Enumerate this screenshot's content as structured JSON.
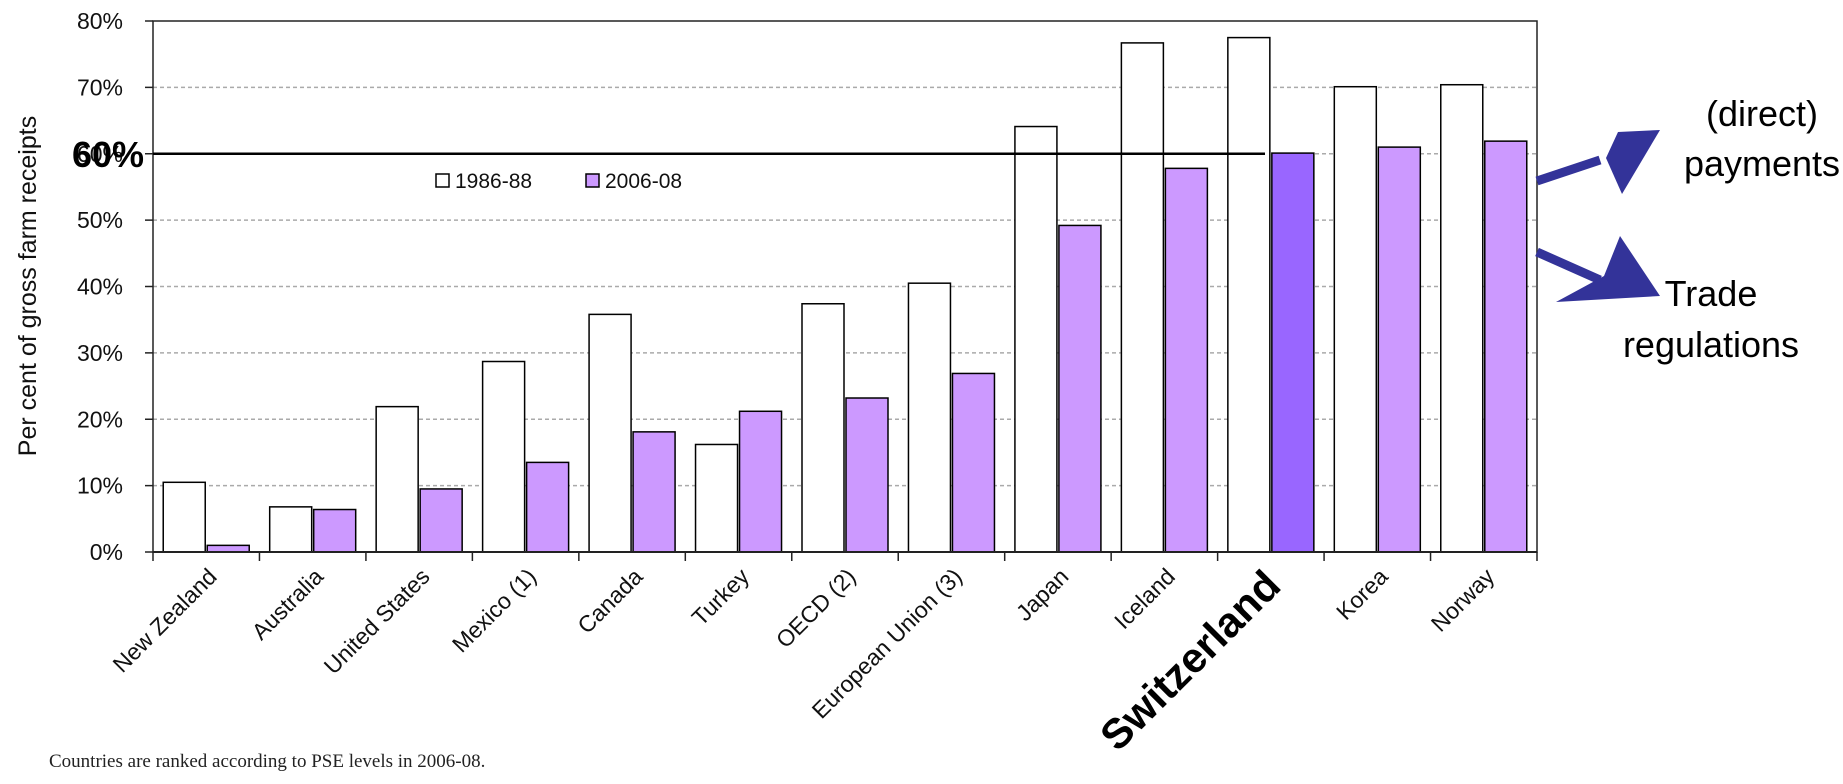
{
  "chart_data": {
    "type": "bar",
    "ylabel": "Per cent of gross farm receipts",
    "ylim": [
      0,
      80
    ],
    "yticks": [
      "0%",
      "10%",
      "20%",
      "30%",
      "40%",
      "50%",
      "60%",
      "70%",
      "80%"
    ],
    "grid": true,
    "categories": [
      "New Zealand",
      "Australia",
      "United States",
      "Mexico (1)",
      "Canada",
      "Turkey",
      "OECD (2)",
      "European Union (3)",
      "Japan",
      "Iceland",
      "Switzerland",
      "Korea",
      "Norway"
    ],
    "highlight_category": "Switzerland",
    "series": [
      {
        "name": "1986-88",
        "color": "#ffffff",
        "values": [
          10.5,
          6.8,
          21.9,
          28.7,
          35.8,
          16.2,
          37.4,
          40.5,
          64.1,
          76.7,
          77.5,
          70.1,
          70.4
        ]
      },
      {
        "name": "2006-08",
        "color": "#cc99ff",
        "highlight_color": "#9966ff",
        "values": [
          1.0,
          6.4,
          9.5,
          13.5,
          18.1,
          21.2,
          23.2,
          26.9,
          49.2,
          57.8,
          60.1,
          61.0,
          61.9
        ]
      }
    ],
    "legend_position": "top-left",
    "reference_line": {
      "value": 60,
      "label": "60%"
    },
    "annotations": [
      {
        "lines": [
          "(direct)",
          "payments"
        ],
        "color": "#333399"
      },
      {
        "lines": [
          "Trade",
          "regulations"
        ],
        "color": "#333399"
      }
    ],
    "note": "Countries are ranked according to PSE levels in 2006-08."
  }
}
